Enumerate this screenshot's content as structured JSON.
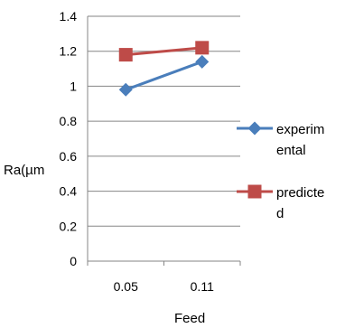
{
  "chart_data": {
    "type": "line",
    "title": "",
    "xlabel": "Feed",
    "ylabel": "Ra(µm",
    "categories": [
      "0.05",
      "0.11"
    ],
    "series": [
      {
        "name": "experimental",
        "legend_lines": [
          "experim",
          "ental"
        ],
        "values": [
          0.98,
          1.14
        ],
        "color": "#4a7ebb",
        "marker": "diamond"
      },
      {
        "name": "predicted",
        "legend_lines": [
          "predicte",
          "d"
        ],
        "values": [
          1.18,
          1.22
        ],
        "color": "#be4b48",
        "marker": "square"
      }
    ],
    "ylim": [
      0,
      1.4
    ],
    "yticks": [
      "0",
      "0.2",
      "0.4",
      "0.6",
      "0.8",
      "1",
      "1.2",
      "1.4"
    ],
    "grid": true,
    "legend": "right"
  }
}
